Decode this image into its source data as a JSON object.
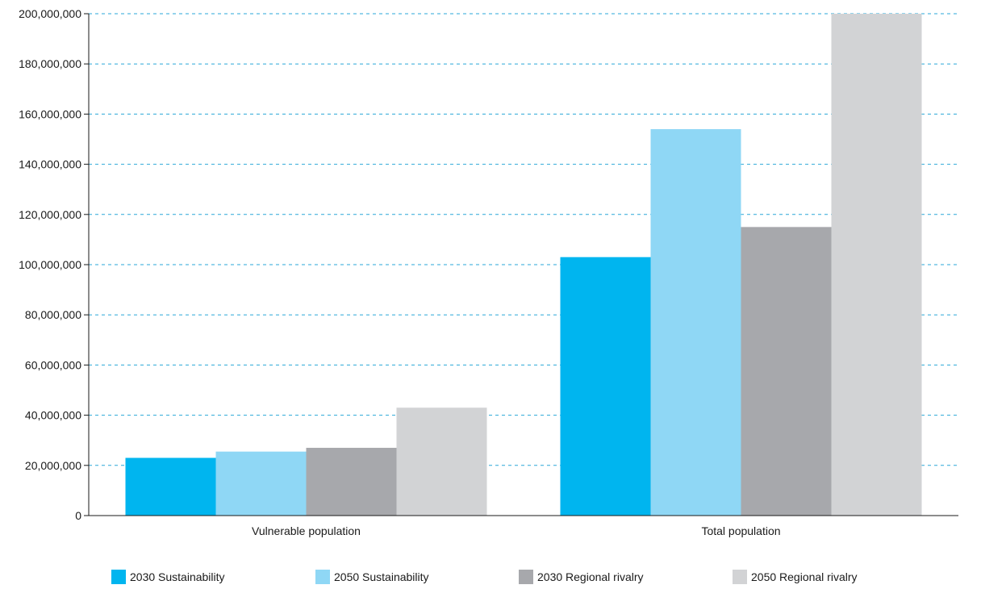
{
  "chart_data": {
    "type": "bar",
    "categories": [
      "Vulnerable population",
      "Total population"
    ],
    "series": [
      {
        "name": "2030 Sustainability",
        "color": "#00b5ef",
        "values": [
          23000000,
          103000000
        ]
      },
      {
        "name": "2050 Sustainability",
        "color": "#8fd7f5",
        "values": [
          25500000,
          154000000
        ]
      },
      {
        "name": "2030 Regional rivalry",
        "color": "#a7a8ac",
        "values": [
          27000000,
          115000000
        ]
      },
      {
        "name": "2050 Regional rivalry",
        "color": "#d2d3d5",
        "values": [
          43000000,
          200000000
        ]
      }
    ],
    "y_ticks": [
      "0",
      "20,000,000",
      "40,000,000",
      "60,000,000",
      "80,000,000",
      "100,000,000",
      "120,000,000",
      "140,000,000",
      "160,000,000",
      "180,000,000",
      "200,000,000"
    ],
    "ylim": [
      0,
      200000000
    ],
    "grid": true,
    "grid_color": "#2aa7d8",
    "legend_position": "bottom"
  }
}
